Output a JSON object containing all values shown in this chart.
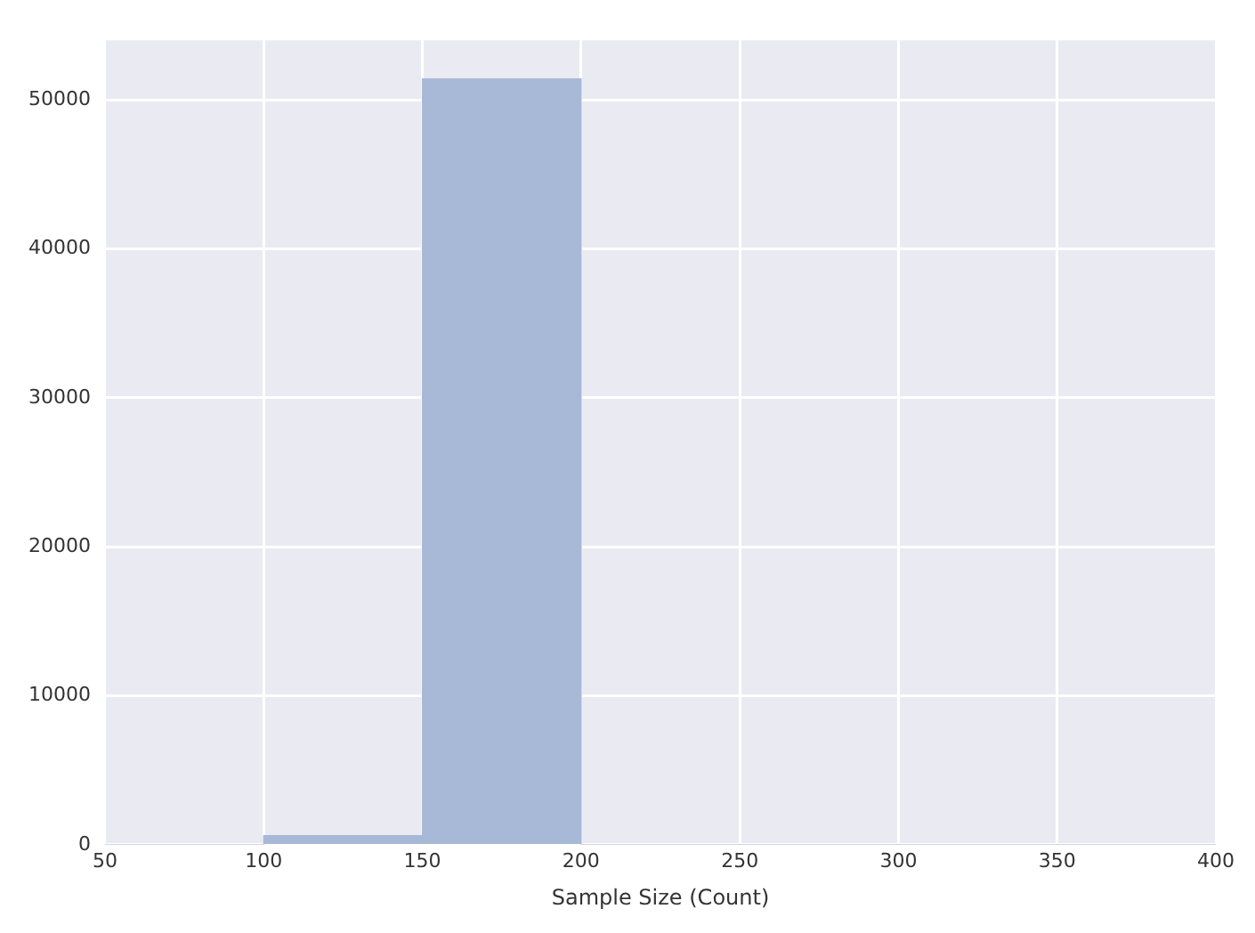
{
  "chart_data": {
    "type": "histogram",
    "xlabel": "Sample Size (Count)",
    "bins": [
      50,
      100,
      150,
      200,
      250,
      300,
      350,
      400
    ],
    "values": [
      0,
      600,
      51400,
      0,
      0,
      0,
      0
    ],
    "color": "#a8b8d7",
    "xlim": [
      50,
      400
    ],
    "xticks": [
      50,
      100,
      150,
      200,
      250,
      300,
      350,
      400
    ],
    "ylim": [
      0,
      54000
    ],
    "yticks": [
      0,
      10000,
      20000,
      30000,
      40000,
      50000
    ],
    "grid": true,
    "legend": false
  }
}
